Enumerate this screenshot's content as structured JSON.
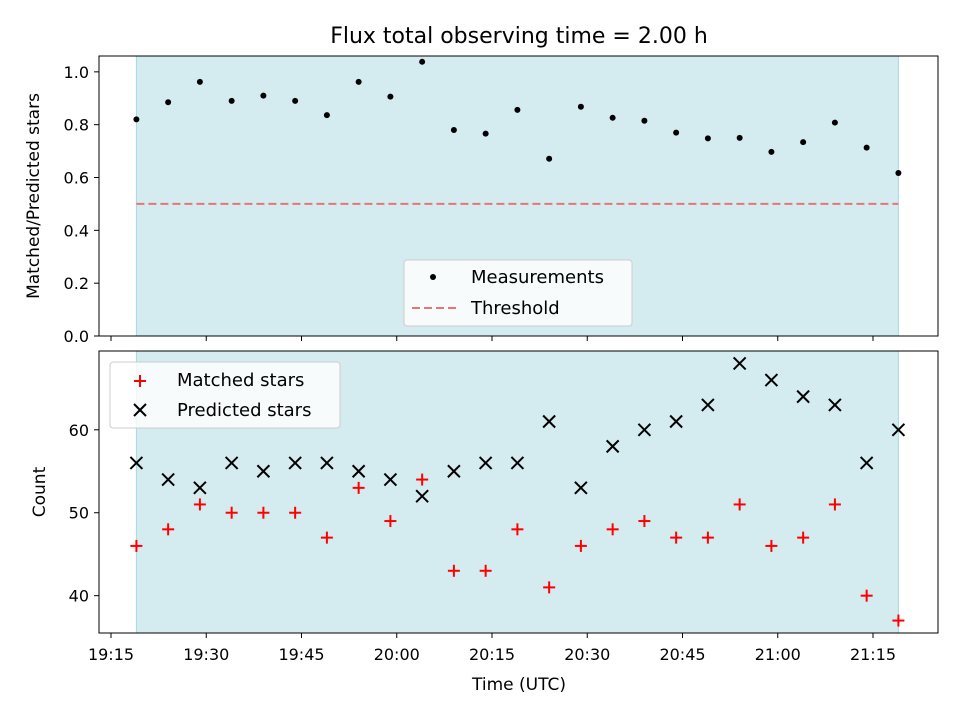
{
  "chart_data": [
    {
      "type": "scatter",
      "title": "Flux total observing time = 2.00 h",
      "ylabel": "Matched/Predicted stars",
      "xlabel": "",
      "ylim": [
        0.0,
        1.06
      ],
      "yticks": [
        "0.0",
        "0.2",
        "0.4",
        "0.6",
        "0.8",
        "1.0"
      ],
      "observing_window": [
        "19:19",
        "21:19"
      ],
      "legend_position": "lower center",
      "series": [
        {
          "name": "Measurements",
          "color": "#000000",
          "marker": "dot",
          "x": [
            "19:19",
            "19:24",
            "19:29",
            "19:34",
            "19:39",
            "19:44",
            "19:49",
            "19:54",
            "19:59",
            "20:04",
            "20:09",
            "20:14",
            "20:19",
            "20:24",
            "20:29",
            "20:34",
            "20:39",
            "20:44",
            "20:49",
            "20:54",
            "20:59",
            "21:04",
            "21:09",
            "21:14",
            "21:19"
          ],
          "y": [
            0.82,
            0.885,
            0.962,
            0.89,
            0.91,
            0.89,
            0.836,
            0.962,
            0.906,
            1.038,
            0.78,
            0.766,
            0.856,
            0.671,
            0.868,
            0.826,
            0.815,
            0.77,
            0.748,
            0.75,
            0.697,
            0.734,
            0.808,
            0.713,
            0.617
          ]
        },
        {
          "name": "Threshold",
          "color": "#e87474",
          "style": "dashed",
          "value": 0.5
        }
      ]
    },
    {
      "type": "scatter",
      "title": "",
      "ylabel": "Count",
      "xlabel": "Time (UTC)",
      "ylim": [
        35.5,
        69.5
      ],
      "yticks": [
        "40",
        "50",
        "60"
      ],
      "xticks": [
        "19:15",
        "19:30",
        "19:45",
        "20:00",
        "20:15",
        "20:30",
        "20:45",
        "21:00",
        "21:15"
      ],
      "legend_position": "upper left",
      "series": [
        {
          "name": "Matched stars",
          "color": "#ff0000",
          "marker": "plus",
          "x": [
            "19:19",
            "19:24",
            "19:29",
            "19:34",
            "19:39",
            "19:44",
            "19:49",
            "19:54",
            "19:59",
            "20:04",
            "20:09",
            "20:14",
            "20:19",
            "20:24",
            "20:29",
            "20:34",
            "20:39",
            "20:44",
            "20:49",
            "20:54",
            "20:59",
            "21:04",
            "21:09",
            "21:14",
            "21:19"
          ],
          "y": [
            46,
            48,
            51,
            50,
            50,
            50,
            47,
            53,
            49,
            54,
            43,
            43,
            48,
            41,
            46,
            48,
            49,
            47,
            47,
            51,
            46,
            47,
            51,
            40,
            37
          ]
        },
        {
          "name": "Predicted stars",
          "color": "#000000",
          "marker": "x",
          "x": [
            "19:19",
            "19:24",
            "19:29",
            "19:34",
            "19:39",
            "19:44",
            "19:49",
            "19:54",
            "19:59",
            "20:04",
            "20:09",
            "20:14",
            "20:19",
            "20:24",
            "20:29",
            "20:34",
            "20:39",
            "20:44",
            "20:49",
            "20:54",
            "20:59",
            "21:04",
            "21:09",
            "21:14",
            "21:19"
          ],
          "y": [
            56,
            54,
            53,
            56,
            55,
            56,
            56,
            55,
            54,
            52,
            55,
            56,
            56,
            61,
            53,
            58,
            60,
            61,
            63,
            68,
            66,
            64,
            63,
            56,
            60
          ]
        }
      ]
    }
  ],
  "colors": {
    "window_fill": "#d4ebf0",
    "window_edge": "#a8d8e0"
  }
}
